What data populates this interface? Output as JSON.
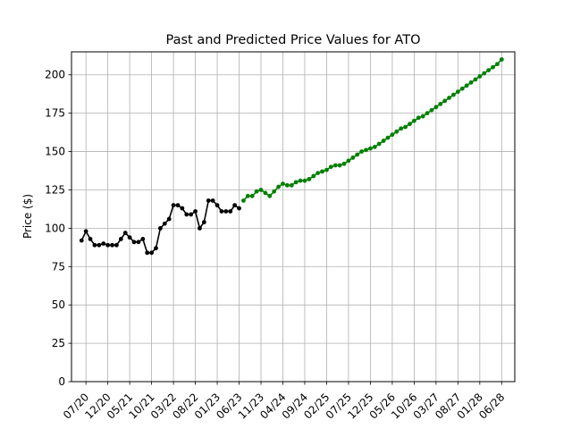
{
  "chart_data": {
    "type": "line",
    "title": "Past and Predicted Price Values for ATO",
    "xlabel": "",
    "ylabel": "Price ($)",
    "ylim": [
      0,
      215
    ],
    "grid": true,
    "x_tick_labels": [
      "07/20",
      "12/20",
      "05/21",
      "10/21",
      "03/22",
      "08/22",
      "01/23",
      "06/23",
      "11/23",
      "04/24",
      "09/24",
      "02/25",
      "07/25",
      "12/25",
      "05/26",
      "10/26",
      "03/27",
      "08/27",
      "01/28",
      "06/28"
    ],
    "y_ticks": [
      0,
      25,
      50,
      75,
      100,
      125,
      150,
      175,
      200
    ],
    "x_unit": "months since 07/20",
    "series": [
      {
        "name": "",
        "color": "#000000",
        "x": [
          -1,
          0,
          1,
          2,
          3,
          4,
          5,
          6,
          7,
          8,
          9,
          10,
          11,
          12,
          13,
          14,
          15,
          16,
          17,
          18,
          19,
          20,
          21,
          22,
          23,
          24,
          25,
          26,
          27,
          28,
          29,
          30,
          31,
          32,
          33,
          34,
          35,
          36
        ],
        "values": [
          92,
          98,
          93,
          89,
          89,
          90,
          89,
          89,
          89,
          93,
          97,
          94,
          91,
          91,
          93,
          84,
          84,
          87,
          100,
          103,
          106,
          115,
          115,
          113,
          109,
          109,
          111,
          100,
          104,
          118,
          118,
          115,
          111,
          111,
          111,
          115,
          113,
          null
        ]
      },
      {
        "name": "",
        "color": "#008000",
        "x": [
          36,
          37,
          38,
          39,
          40,
          41,
          42,
          43,
          44,
          45,
          46,
          47,
          48,
          49,
          50,
          51,
          52,
          53,
          54,
          55,
          56,
          57,
          58,
          59,
          60,
          61,
          62,
          63,
          64,
          65,
          66,
          67,
          68,
          69,
          70,
          71,
          72,
          73,
          74,
          75,
          76,
          77,
          78,
          79,
          80,
          81,
          82,
          83,
          84,
          85,
          86,
          87,
          88,
          89,
          90,
          91,
          92,
          93,
          94,
          95
        ],
        "values": [
          118,
          121,
          121,
          124,
          125,
          123,
          121,
          124,
          127,
          129,
          128,
          128,
          130,
          131,
          131,
          132,
          134,
          136,
          137,
          138,
          140,
          141,
          141,
          142,
          144,
          146,
          148,
          150,
          151,
          152,
          153,
          155,
          157,
          159,
          161,
          163,
          165,
          166,
          168,
          170,
          172,
          173,
          175,
          177,
          179,
          181,
          183,
          185,
          187,
          189,
          191,
          193,
          195,
          197,
          199,
          201,
          203,
          205,
          207,
          210
        ]
      }
    ]
  }
}
